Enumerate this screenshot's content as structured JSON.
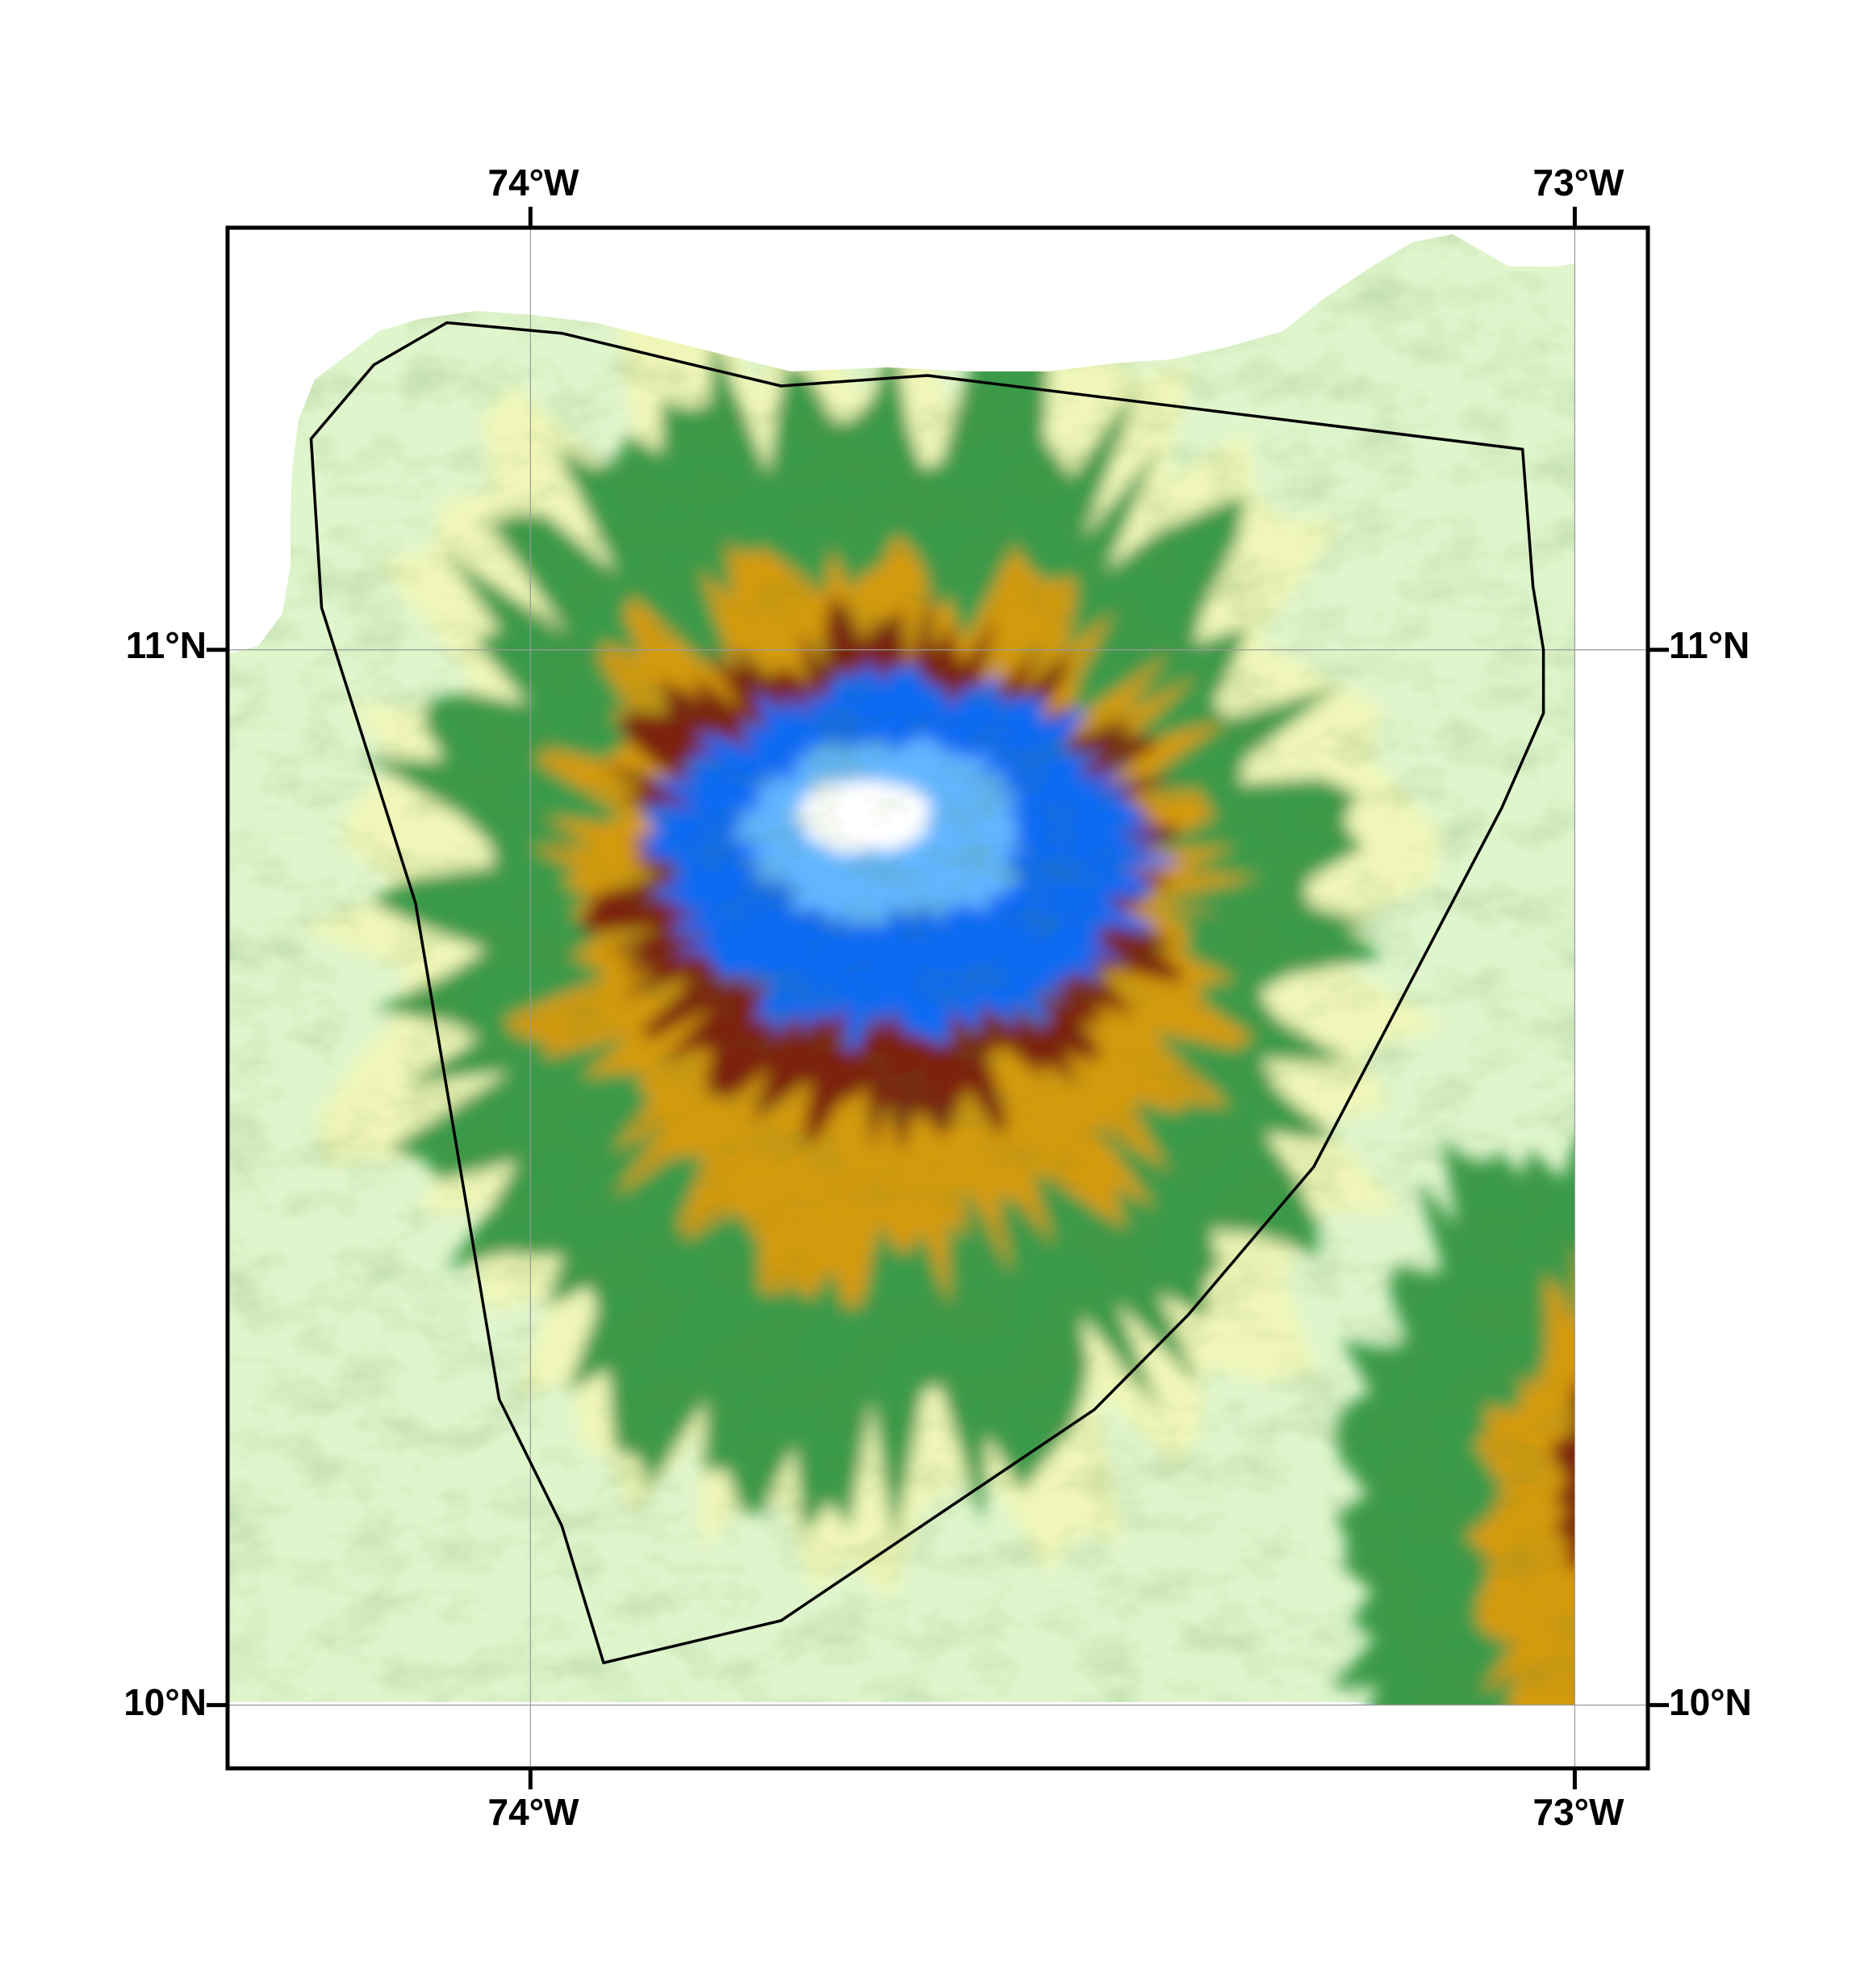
{
  "map": {
    "graticule": {
      "longitudes": [
        {
          "value": -74,
          "label": "74°W"
        },
        {
          "value": -73,
          "label": "73°W"
        }
      ],
      "latitudes": [
        {
          "value": 11,
          "label": "11°N"
        },
        {
          "value": 10,
          "label": "10°N"
        }
      ]
    },
    "extent": {
      "lon_min": -74.29,
      "lon_max": -72.93,
      "lat_min": 9.94,
      "lat_max": 11.4
    },
    "data_extent": {
      "lon_max": -73.0,
      "lat_min": 10.0
    },
    "boundary_polygon": [
      [
        -74.21,
        11.2
      ],
      [
        -74.15,
        11.27
      ],
      [
        -74.08,
        11.31
      ],
      [
        -73.97,
        11.3
      ],
      [
        -73.76,
        11.25
      ],
      [
        -73.62,
        11.26
      ],
      [
        -73.05,
        11.19
      ],
      [
        -73.04,
        11.06
      ],
      [
        -73.03,
        11.0
      ],
      [
        -73.03,
        10.94
      ],
      [
        -73.07,
        10.85
      ],
      [
        -73.25,
        10.51
      ],
      [
        -73.37,
        10.37
      ],
      [
        -73.46,
        10.28
      ],
      [
        -73.76,
        10.08
      ],
      [
        -73.93,
        10.04
      ],
      [
        -73.97,
        10.17
      ],
      [
        -74.03,
        10.29
      ],
      [
        -74.11,
        10.76
      ],
      [
        -74.2,
        11.04
      ],
      [
        -74.21,
        11.2
      ]
    ],
    "elevation_colors": [
      "#c8f2d4",
      "#e8f6c2",
      "#f4f6b4",
      "#2e8b3e",
      "#d29a0a",
      "#7a1e0a",
      "#0a64f0",
      "#5ab4ff",
      "#ffffff"
    ],
    "sea_color": "#ffffff",
    "outline_color": "#000000"
  }
}
